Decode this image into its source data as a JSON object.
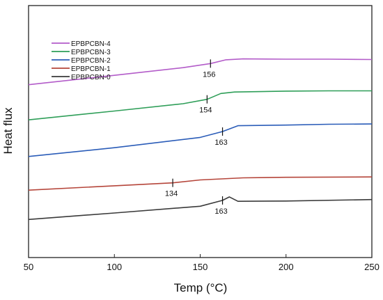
{
  "chart_data": {
    "type": "line",
    "xlabel": "Temp (°C)",
    "ylabel": "Heat flux",
    "xlim": [
      50,
      250
    ],
    "xticks": [
      50,
      100,
      150,
      200,
      250
    ],
    "grid": false,
    "legend_position": "top-left",
    "series": [
      {
        "name": "EPBPCBN-4",
        "color": "#b35cc9",
        "x": [
          50,
          100,
          140,
          156,
          165,
          175,
          200,
          225,
          250
        ],
        "y": [
          4.9,
          5.22,
          5.48,
          5.62,
          5.75,
          5.78,
          5.77,
          5.77,
          5.76
        ],
        "tg": 156
      },
      {
        "name": "EPBPCBN-3",
        "color": "#2e9e58",
        "x": [
          50,
          100,
          140,
          154,
          162,
          170,
          200,
          225,
          250
        ],
        "y": [
          3.7,
          4.0,
          4.25,
          4.4,
          4.6,
          4.65,
          4.68,
          4.69,
          4.69
        ],
        "tg": 154
      },
      {
        "name": "EPBPCBN-2",
        "color": "#2a5cb8",
        "x": [
          50,
          100,
          150,
          163,
          172,
          200,
          225,
          250
        ],
        "y": [
          2.45,
          2.75,
          3.1,
          3.3,
          3.5,
          3.52,
          3.55,
          3.56
        ],
        "tg": 163
      },
      {
        "name": "EPBPCBN-1",
        "color": "#b5453a",
        "x": [
          50,
          100,
          134,
          150,
          175,
          200,
          250
        ],
        "y": [
          1.3,
          1.45,
          1.55,
          1.65,
          1.72,
          1.74,
          1.75
        ],
        "tg": 134
      },
      {
        "name": "EPBPCBN-0",
        "color": "#3a3a3a",
        "x": [
          50,
          100,
          150,
          163,
          167,
          172,
          200,
          250
        ],
        "y": [
          0.3,
          0.52,
          0.75,
          0.95,
          1.07,
          0.92,
          0.93,
          0.98
        ],
        "tg": 163
      }
    ],
    "annotations": [
      {
        "series": "EPBPCBN-4",
        "label": "156"
      },
      {
        "series": "EPBPCBN-3",
        "label": "154"
      },
      {
        "series": "EPBPCBN-2",
        "label": "163"
      },
      {
        "series": "EPBPCBN-1",
        "label": "134"
      },
      {
        "series": "EPBPCBN-0",
        "label": "163"
      }
    ]
  }
}
